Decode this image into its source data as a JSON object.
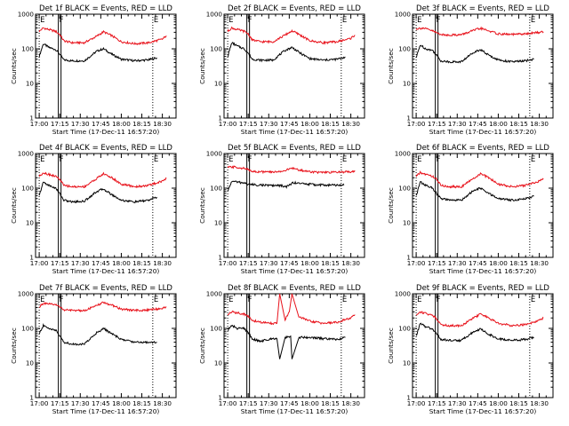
{
  "page": {
    "x_axis_label": "Start Time (17-Dec-11 16:57:20)",
    "y_axis_label": "Counts/sec"
  },
  "style": {
    "background": "#ffffff",
    "events_color": "#000000",
    "lld_color": "#e8121b",
    "axis_color": "#000000"
  },
  "chart_data": [
    {
      "type": "line",
      "title": "Det 1f BLACK = Events, RED = LLD",
      "xlabel": "Start Time (17-Dec-11 16:57:20)",
      "ylabel": "Counts/sec",
      "xlim": [
        "16:57:20",
        "18:40"
      ],
      "ylim": [
        1,
        1000
      ],
      "yscale": "log",
      "xticks": [
        "17:00",
        "17:15",
        "17:30",
        "17:45",
        "18:00",
        "18:15",
        "18:30"
      ],
      "yticks": [
        "1",
        "10",
        "100",
        "1000"
      ],
      "flags": [
        {
          "time": "17:00",
          "label": "E"
        },
        {
          "time": "17:14",
          "label": "F"
        },
        {
          "time": "18:23",
          "label": "E"
        }
      ],
      "series": [
        {
          "name": "Events",
          "x": [
            "17:00",
            "17:03",
            "17:07",
            "17:12",
            "17:15",
            "17:18",
            "17:24",
            "17:33",
            "17:42",
            "17:47",
            "17:53",
            "18:00",
            "18:10",
            "18:20",
            "18:26"
          ],
          "y": [
            60,
            140,
            110,
            95,
            70,
            48,
            45,
            45,
            85,
            100,
            70,
            50,
            45,
            48,
            55
          ]
        },
        {
          "name": "LLD",
          "x": [
            "17:00",
            "17:03",
            "17:07",
            "17:12",
            "17:15",
            "17:18",
            "17:24",
            "17:33",
            "17:42",
            "17:47",
            "17:53",
            "18:00",
            "18:10",
            "18:20",
            "18:30",
            "18:33"
          ],
          "y": [
            320,
            400,
            360,
            320,
            260,
            170,
            150,
            150,
            230,
            310,
            240,
            160,
            140,
            150,
            190,
            240
          ]
        }
      ]
    },
    {
      "type": "line",
      "title": "Det 2f BLACK = Events, RED = LLD",
      "xlabel": "Start Time (17-Dec-11 16:57:20)",
      "ylabel": "Counts/sec",
      "xlim": [
        "16:57:20",
        "18:40"
      ],
      "ylim": [
        1,
        1000
      ],
      "yscale": "log",
      "xticks": [
        "17:00",
        "17:15",
        "17:30",
        "17:45",
        "18:00",
        "18:15",
        "18:30"
      ],
      "yticks": [
        "1",
        "10",
        "100",
        "1000"
      ],
      "flags": [
        {
          "time": "17:00",
          "label": "E"
        },
        {
          "time": "17:14",
          "label": "F"
        },
        {
          "time": "18:23",
          "label": "E"
        }
      ],
      "series": [
        {
          "name": "Events",
          "x": [
            "17:00",
            "17:03",
            "17:07",
            "17:12",
            "17:15",
            "17:18",
            "17:24",
            "17:33",
            "17:42",
            "17:47",
            "17:53",
            "18:00",
            "18:10",
            "18:20",
            "18:26"
          ],
          "y": [
            60,
            150,
            120,
            100,
            75,
            50,
            47,
            47,
            90,
            110,
            75,
            52,
            47,
            50,
            58
          ]
        },
        {
          "name": "LLD",
          "x": [
            "17:00",
            "17:03",
            "17:07",
            "17:12",
            "17:15",
            "17:18",
            "17:24",
            "17:33",
            "17:42",
            "17:47",
            "17:53",
            "18:00",
            "18:10",
            "18:20",
            "18:30",
            "18:33"
          ],
          "y": [
            320,
            400,
            360,
            320,
            270,
            180,
            160,
            160,
            250,
            330,
            250,
            170,
            150,
            160,
            200,
            250
          ]
        }
      ]
    },
    {
      "type": "line",
      "title": "Det 3f BLACK = Events, RED = LLD",
      "xlabel": "Start Time (17-Dec-11 16:57:20)",
      "ylabel": "Counts/sec",
      "xlim": [
        "16:57:20",
        "18:40"
      ],
      "ylim": [
        1,
        1000
      ],
      "yscale": "log",
      "xticks": [
        "17:00",
        "17:15",
        "17:30",
        "17:45",
        "18:00",
        "18:15",
        "18:30"
      ],
      "yticks": [
        "1",
        "10",
        "100",
        "1000"
      ],
      "flags": [
        {
          "time": "17:00",
          "label": "E"
        },
        {
          "time": "17:14",
          "label": "F"
        },
        {
          "time": "18:23",
          "label": "E"
        }
      ],
      "series": [
        {
          "name": "Events",
          "x": [
            "17:00",
            "17:03",
            "17:07",
            "17:12",
            "17:15",
            "17:18",
            "17:24",
            "17:33",
            "17:42",
            "17:47",
            "17:53",
            "18:00",
            "18:10",
            "18:20",
            "18:26"
          ],
          "y": [
            55,
            130,
            100,
            90,
            65,
            45,
            42,
            42,
            80,
            95,
            65,
            48,
            42,
            45,
            50
          ]
        },
        {
          "name": "LLD",
          "x": [
            "17:00",
            "17:05",
            "17:12",
            "17:15",
            "17:20",
            "17:33",
            "17:42",
            "17:47",
            "17:53",
            "18:00",
            "18:10",
            "18:20",
            "18:30",
            "18:33"
          ],
          "y": [
            380,
            400,
            330,
            290,
            250,
            255,
            340,
            390,
            330,
            270,
            260,
            270,
            300,
            310
          ]
        }
      ]
    },
    {
      "type": "line",
      "title": "Det 4f BLACK = Events, RED = LLD",
      "xlabel": "Start Time (17-Dec-11 16:57:20)",
      "ylabel": "Counts/sec",
      "xlim": [
        "16:57:20",
        "18:40"
      ],
      "ylim": [
        1,
        1000
      ],
      "yscale": "log",
      "xticks": [
        "17:00",
        "17:15",
        "17:30",
        "17:45",
        "18:00",
        "18:15",
        "18:30"
      ],
      "yticks": [
        "1",
        "10",
        "100",
        "1000"
      ],
      "flags": [
        {
          "time": "17:00",
          "label": "E"
        },
        {
          "time": "17:14",
          "label": "F"
        },
        {
          "time": "18:23",
          "label": "E"
        }
      ],
      "series": [
        {
          "name": "Events",
          "x": [
            "17:00",
            "17:03",
            "17:07",
            "17:12",
            "17:15",
            "17:18",
            "17:24",
            "17:33",
            "17:42",
            "17:47",
            "17:53",
            "18:00",
            "18:10",
            "18:20",
            "18:26"
          ],
          "y": [
            60,
            150,
            120,
            100,
            70,
            45,
            40,
            42,
            80,
            95,
            65,
            45,
            40,
            45,
            55
          ]
        },
        {
          "name": "LLD",
          "x": [
            "17:00",
            "17:03",
            "17:07",
            "17:12",
            "17:15",
            "17:18",
            "17:24",
            "17:33",
            "17:42",
            "17:47",
            "17:53",
            "18:00",
            "18:10",
            "18:20",
            "18:30",
            "18:33"
          ],
          "y": [
            220,
            280,
            250,
            220,
            180,
            120,
            110,
            110,
            190,
            260,
            200,
            130,
            110,
            120,
            160,
            190
          ]
        }
      ]
    },
    {
      "type": "line",
      "title": "Det 5f BLACK = Events, RED = LLD",
      "xlabel": "Start Time (17-Dec-11 16:57:20)",
      "ylabel": "Counts/sec",
      "xlim": [
        "16:57:20",
        "18:40"
      ],
      "ylim": [
        1,
        1000
      ],
      "yscale": "log",
      "xticks": [
        "17:00",
        "17:15",
        "17:30",
        "17:45",
        "18:00",
        "18:15",
        "18:30"
      ],
      "yticks": [
        "1",
        "10",
        "100",
        "1000"
      ],
      "flags": [
        {
          "time": "17:00",
          "label": "E"
        },
        {
          "time": "17:14",
          "label": "F"
        },
        {
          "time": "18:23",
          "label": "E"
        }
      ],
      "series": [
        {
          "name": "Events",
          "x": [
            "17:00",
            "17:03",
            "17:07",
            "17:12",
            "17:15",
            "17:20",
            "17:30",
            "17:40",
            "17:42",
            "17:48",
            "17:55",
            "18:05",
            "18:15",
            "18:25"
          ],
          "y": [
            80,
            160,
            150,
            140,
            130,
            125,
            120,
            118,
            105,
            145,
            135,
            125,
            122,
            122
          ]
        },
        {
          "name": "LLD",
          "x": [
            "17:00",
            "17:05",
            "17:12",
            "17:15",
            "17:20",
            "17:33",
            "17:42",
            "17:47",
            "17:53",
            "18:00",
            "18:10",
            "18:20",
            "18:30",
            "18:33"
          ],
          "y": [
            400,
            410,
            370,
            340,
            300,
            290,
            320,
            380,
            330,
            300,
            280,
            290,
            300,
            320
          ]
        }
      ]
    },
    {
      "type": "line",
      "title": "Det 6f BLACK = Events, RED = LLD",
      "xlabel": "Start Time (17-Dec-11 16:57:20)",
      "ylabel": "Counts/sec",
      "xlim": [
        "16:57:20",
        "18:40"
      ],
      "ylim": [
        1,
        1000
      ],
      "yscale": "log",
      "xticks": [
        "17:00",
        "17:15",
        "17:30",
        "17:45",
        "18:00",
        "18:15",
        "18:30"
      ],
      "yticks": [
        "1",
        "10",
        "100",
        "1000"
      ],
      "flags": [
        {
          "time": "17:00",
          "label": "E"
        },
        {
          "time": "17:14",
          "label": "F"
        },
        {
          "time": "18:23",
          "label": "E"
        }
      ],
      "series": [
        {
          "name": "Events",
          "x": [
            "17:00",
            "17:03",
            "17:07",
            "17:12",
            "17:15",
            "17:18",
            "17:24",
            "17:33",
            "17:42",
            "17:47",
            "17:53",
            "18:00",
            "18:10",
            "18:20",
            "18:26"
          ],
          "y": [
            60,
            150,
            120,
            100,
            70,
            50,
            45,
            45,
            85,
            100,
            70,
            50,
            45,
            50,
            58
          ]
        },
        {
          "name": "LLD",
          "x": [
            "17:00",
            "17:03",
            "17:07",
            "17:12",
            "17:15",
            "17:18",
            "17:24",
            "17:33",
            "17:42",
            "17:47",
            "17:53",
            "18:00",
            "18:10",
            "18:20",
            "18:30",
            "18:33"
          ],
          "y": [
            220,
            280,
            250,
            220,
            180,
            120,
            110,
            110,
            190,
            260,
            200,
            130,
            110,
            120,
            160,
            180
          ]
        }
      ]
    },
    {
      "type": "line",
      "title": "Det 7f BLACK = Events, RED = LLD",
      "xlabel": "Start Time (17-Dec-11 16:57:20)",
      "ylabel": "Counts/sec",
      "xlim": [
        "16:57:20",
        "18:40"
      ],
      "ylim": [
        1,
        1000
      ],
      "yscale": "log",
      "xticks": [
        "17:00",
        "17:15",
        "17:30",
        "17:45",
        "18:00",
        "18:15",
        "18:30"
      ],
      "yticks": [
        "1",
        "10",
        "100",
        "1000"
      ],
      "flags": [
        {
          "time": "17:00",
          "label": "E"
        },
        {
          "time": "17:14",
          "label": "F"
        },
        {
          "time": "18:23",
          "label": "E"
        }
      ],
      "series": [
        {
          "name": "Events",
          "x": [
            "17:00",
            "17:03",
            "17:07",
            "17:12",
            "17:15",
            "17:18",
            "17:24",
            "17:33",
            "17:42",
            "17:47",
            "17:53",
            "18:00",
            "18:10",
            "18:20",
            "18:26"
          ],
          "y": [
            70,
            120,
            100,
            90,
            60,
            40,
            35,
            35,
            75,
            100,
            70,
            48,
            40,
            40,
            40
          ]
        },
        {
          "name": "LLD",
          "x": [
            "17:00",
            "17:03",
            "17:07",
            "17:12",
            "17:15",
            "17:18",
            "17:24",
            "17:33",
            "17:42",
            "17:47",
            "17:53",
            "18:00",
            "18:10",
            "18:20",
            "18:30",
            "18:33"
          ],
          "y": [
            420,
            520,
            500,
            480,
            430,
            340,
            330,
            330,
            450,
            560,
            470,
            360,
            330,
            340,
            380,
            420
          ]
        }
      ]
    },
    {
      "type": "line",
      "title": "Det 8f BLACK = Events, RED = LLD",
      "xlabel": "Start Time (17-Dec-11 16:57:20)",
      "ylabel": "Counts/sec",
      "xlim": [
        "16:57:20",
        "18:40"
      ],
      "ylim": [
        1,
        1000
      ],
      "yscale": "log",
      "xticks": [
        "17:00",
        "17:15",
        "17:30",
        "17:45",
        "18:00",
        "18:15",
        "18:30"
      ],
      "yticks": [
        "1",
        "10",
        "100",
        "1000"
      ],
      "flags": [
        {
          "time": "17:00",
          "label": "E"
        },
        {
          "time": "17:14",
          "label": "F"
        },
        {
          "time": "18:23",
          "label": "E"
        }
      ],
      "series": [
        {
          "name": "Events",
          "x": [
            "17:00",
            "17:03",
            "17:07",
            "17:12",
            "17:15",
            "17:18",
            "17:24",
            "17:33",
            "17:36",
            "17:38",
            "17:42",
            "17:46",
            "17:47",
            "17:52",
            "18:00",
            "18:10",
            "18:20",
            "18:26"
          ],
          "y": [
            90,
            120,
            100,
            100,
            75,
            50,
            42,
            52,
            50,
            13,
            55,
            60,
            13,
            55,
            55,
            50,
            48,
            55
          ]
        },
        {
          "name": "LLD",
          "x": [
            "17:00",
            "17:03",
            "17:07",
            "17:12",
            "17:15",
            "17:18",
            "17:24",
            "17:33",
            "17:36",
            "17:38",
            "17:42",
            "17:45",
            "17:47",
            "17:52",
            "18:00",
            "18:10",
            "18:20",
            "18:30",
            "18:33"
          ],
          "y": [
            250,
            300,
            280,
            260,
            220,
            170,
            150,
            140,
            140,
            1000,
            180,
            300,
            1000,
            220,
            160,
            140,
            150,
            200,
            250
          ]
        }
      ]
    },
    {
      "type": "line",
      "title": "Det 9f BLACK = Events, RED = LLD",
      "xlabel": "Start Time (17-Dec-11 16:57:20)",
      "ylabel": "Counts/sec",
      "xlim": [
        "16:57:20",
        "18:40"
      ],
      "ylim": [
        1,
        1000
      ],
      "yscale": "log",
      "xticks": [
        "17:00",
        "17:15",
        "17:30",
        "17:45",
        "18:00",
        "18:15",
        "18:30"
      ],
      "yticks": [
        "1",
        "10",
        "100",
        "1000"
      ],
      "flags": [
        {
          "time": "17:00",
          "label": "E"
        },
        {
          "time": "17:14",
          "label": "F"
        },
        {
          "time": "18:23",
          "label": "E"
        }
      ],
      "series": [
        {
          "name": "Events",
          "x": [
            "17:00",
            "17:03",
            "17:07",
            "17:12",
            "17:15",
            "17:18",
            "17:24",
            "17:33",
            "17:42",
            "17:47",
            "17:53",
            "18:00",
            "18:10",
            "18:20",
            "18:26"
          ],
          "y": [
            60,
            140,
            110,
            95,
            70,
            48,
            45,
            45,
            80,
            95,
            68,
            50,
            45,
            48,
            55
          ]
        },
        {
          "name": "LLD",
          "x": [
            "17:00",
            "17:03",
            "17:07",
            "17:12",
            "17:15",
            "17:18",
            "17:24",
            "17:33",
            "17:42",
            "17:47",
            "17:53",
            "18:00",
            "18:10",
            "18:20",
            "18:30",
            "18:33"
          ],
          "y": [
            240,
            300,
            270,
            240,
            190,
            130,
            120,
            120,
            200,
            260,
            200,
            140,
            120,
            130,
            170,
            200
          ]
        }
      ]
    }
  ]
}
